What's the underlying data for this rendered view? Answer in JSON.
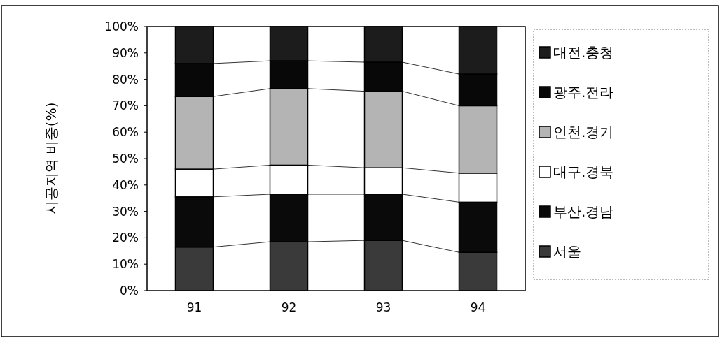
{
  "chart_data": {
    "type": "bar",
    "stacked": true,
    "ylabel": "시공지역 비중(%)",
    "categories": [
      "91",
      "92",
      "93",
      "94"
    ],
    "series": [
      {
        "name": "서울",
        "color": "#3a3a3a",
        "values": [
          16.5,
          18.5,
          19,
          14.5
        ]
      },
      {
        "name": "부산.경남",
        "color": "#0a0a0a",
        "values": [
          19,
          18,
          17.5,
          19
        ]
      },
      {
        "name": "대구.경북",
        "color": "#ffffff",
        "values": [
          10.5,
          11,
          10,
          11
        ]
      },
      {
        "name": "인천.경기",
        "color": "#b4b4b4",
        "values": [
          27.5,
          29,
          29,
          25.5
        ]
      },
      {
        "name": "광주.전라",
        "color": "#080808",
        "values": [
          12.5,
          10.5,
          11,
          12
        ]
      },
      {
        "name": "대전.충청",
        "color": "#1c1c1c",
        "values": [
          14,
          13,
          13.5,
          18
        ]
      }
    ],
    "ylim": [
      0,
      100
    ],
    "yticks": [
      {
        "value": 0,
        "label": "0%"
      },
      {
        "value": 10,
        "label": "10%"
      },
      {
        "value": 20,
        "label": "20%"
      },
      {
        "value": 30,
        "label": "30%"
      },
      {
        "value": 40,
        "label": "40%"
      },
      {
        "value": 50,
        "label": "50%"
      },
      {
        "value": 60,
        "label": "60%"
      },
      {
        "value": 70,
        "label": "70%"
      },
      {
        "value": 80,
        "label": "80%"
      },
      {
        "value": 90,
        "label": "90%"
      },
      {
        "value": 100,
        "label": "100%"
      }
    ],
    "legend": "right",
    "grid": false
  }
}
